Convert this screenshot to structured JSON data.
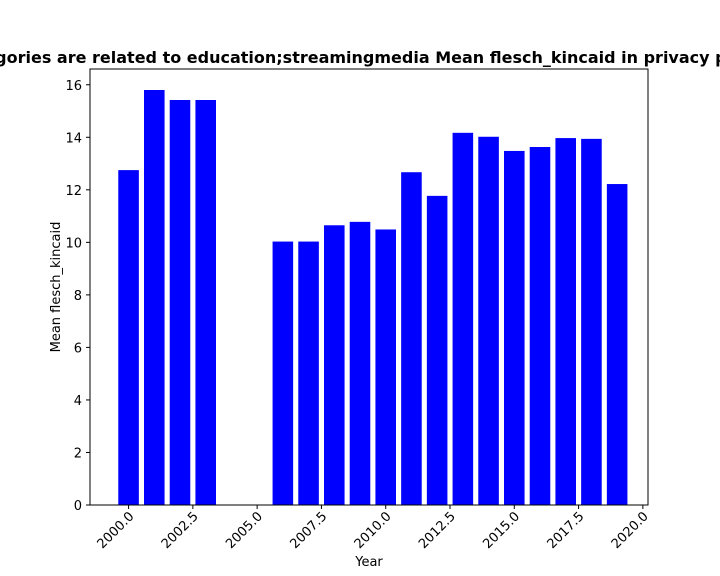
{
  "chart_data": {
    "type": "bar",
    "title": "Categories are related to education;streamingmedia Mean flesch_kincaid in privacy policies",
    "xlabel": "Year",
    "ylabel": "Mean flesch_kincaid",
    "x": [
      2000,
      2001,
      2002,
      2003,
      2006,
      2007,
      2008,
      2009,
      2010,
      2011,
      2012,
      2013,
      2014,
      2015,
      2016,
      2017,
      2018,
      2019
    ],
    "values": [
      12.75,
      15.8,
      15.42,
      15.42,
      10.03,
      10.03,
      10.65,
      10.78,
      10.49,
      12.67,
      11.77,
      14.17,
      14.02,
      13.48,
      13.63,
      13.97,
      13.94,
      12.22
    ],
    "xlim": [
      1998.5,
      2020.2
    ],
    "ylim": [
      0,
      16.6
    ],
    "xticks": [
      "2000.0",
      "2002.5",
      "2005.0",
      "2007.5",
      "2010.0",
      "2012.5",
      "2015.0",
      "2017.5",
      "2020.0"
    ],
    "yticks": [
      "0",
      "2",
      "4",
      "6",
      "8",
      "10",
      "12",
      "14",
      "16"
    ],
    "bar_color": "#0000ff",
    "grid": false
  }
}
